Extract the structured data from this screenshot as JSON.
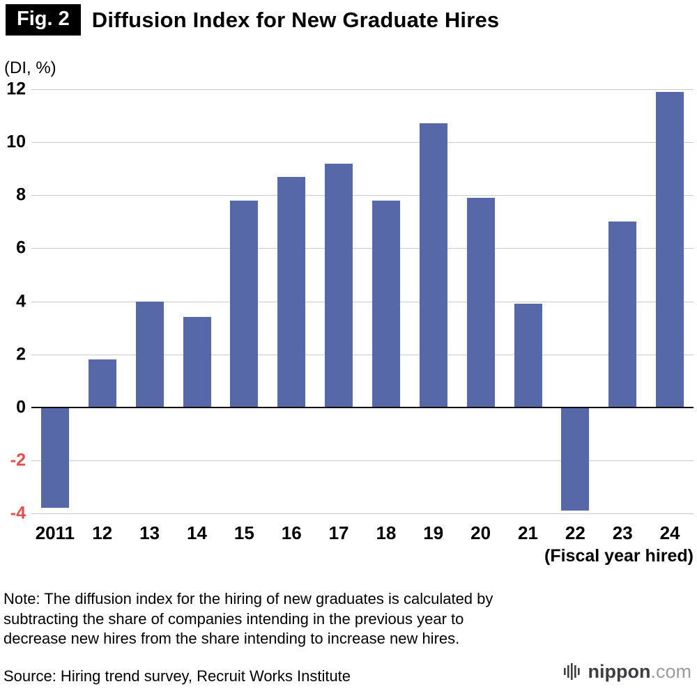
{
  "header": {
    "fig_label": "Fig. 2",
    "title": "Diffusion Index for New Graduate Hires"
  },
  "axis_unit_label": "(DI, %)",
  "x_axis_caption": "(Fiscal year hired)",
  "note": "Note: The diffusion index for the hiring of new graduates is calculated by subtracting the share of companies intending in the previous year to decrease new hires from the share intending to increase new hires.",
  "source": "Source: Hiring trend survey, Recruit Works Institute",
  "logo": {
    "name": "nippon",
    "tld": ".com"
  },
  "chart_data": {
    "type": "bar",
    "categories": [
      "2011",
      "12",
      "13",
      "14",
      "15",
      "16",
      "17",
      "18",
      "19",
      "20",
      "21",
      "22",
      "23",
      "24"
    ],
    "values": [
      -3.8,
      1.8,
      4.0,
      3.4,
      7.8,
      8.7,
      9.2,
      7.8,
      10.7,
      7.9,
      3.9,
      -3.9,
      7.0,
      11.9
    ],
    "title": "Diffusion Index for New Graduate Hires",
    "xlabel": "(Fiscal year hired)",
    "ylabel": "(DI, %)",
    "ylim": [
      -4,
      12
    ],
    "ytick_step": 2,
    "grid": true,
    "legend": "none",
    "bar_color": "#5668a7",
    "negative_tick_color": "#e0504f"
  }
}
